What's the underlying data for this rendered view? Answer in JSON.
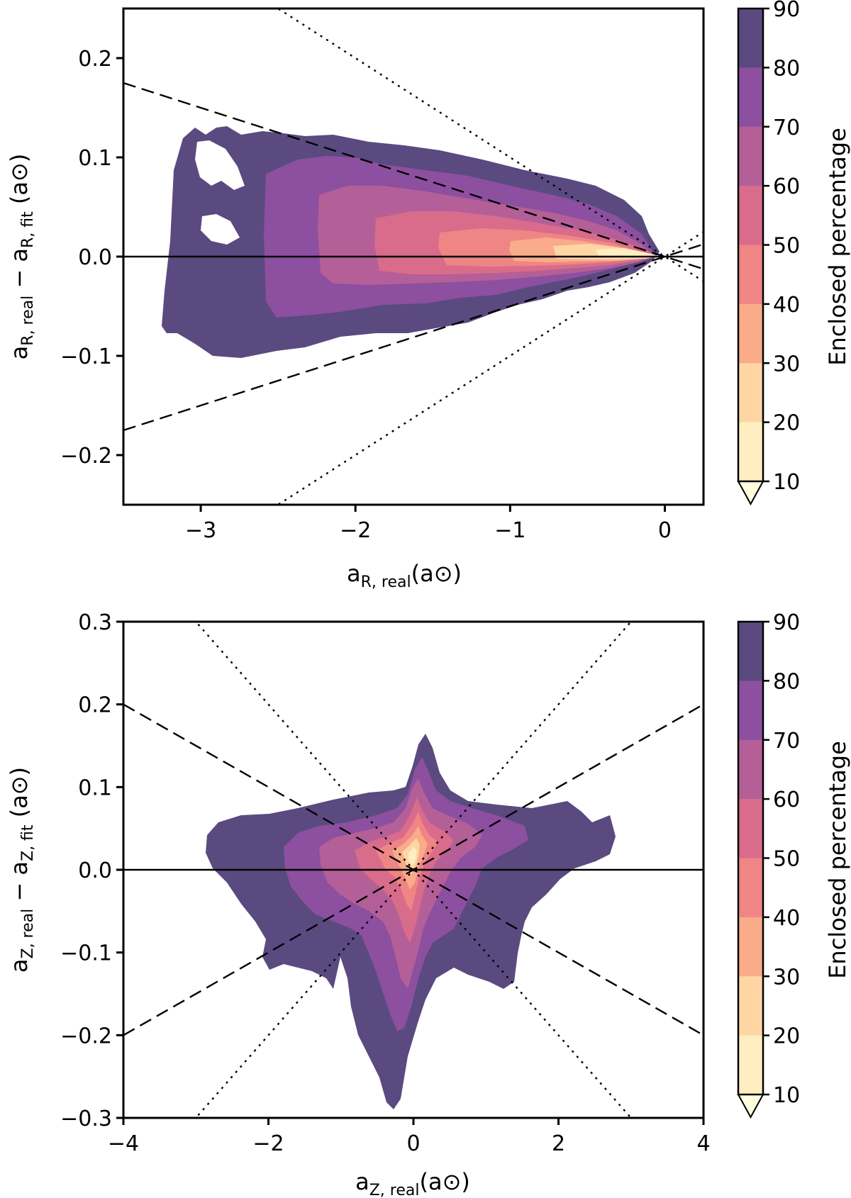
{
  "colors": {
    "levels": [
      "#feeec2",
      "#fed6a4",
      "#f9ab8a",
      "#ef8585",
      "#d96c8b",
      "#b45f98",
      "#8d4f9f",
      "#5a4a80",
      "#ffffff"
    ],
    "reference_line": "#000000"
  },
  "chart_data": [
    {
      "type": "contour",
      "xlabel": {
        "main": "a",
        "sub": "R, real",
        "unit": "(a⊙)"
      },
      "ylabel": {
        "main1": "a",
        "sub1": "R, real",
        "minus": " − ",
        "main2": "a",
        "sub2": "R, fit",
        "unit": " (a⊙)"
      },
      "xlim": [
        -3.5,
        0.25
      ],
      "ylim": [
        -0.25,
        0.25
      ],
      "xticks": [
        -3,
        -2,
        -1,
        0
      ],
      "xtick_labels": [
        "−3",
        "−2",
        "−1",
        "0"
      ],
      "yticks": [
        -0.2,
        -0.1,
        0.0,
        0.1,
        0.2
      ],
      "ytick_labels": [
        "−0.2",
        "−0.1",
        "0.0",
        "0.1",
        "0.2"
      ],
      "colorbar": {
        "label": "Enclosed percentage",
        "ticks": [
          "10",
          "20",
          "30",
          "40",
          "50",
          "60",
          "70",
          "80",
          "90"
        ]
      },
      "reference_lines": [
        {
          "style": "solid",
          "slope": 0
        },
        {
          "style": "dashed",
          "slope": -0.05
        },
        {
          "style": "dashed",
          "slope": 0.05
        },
        {
          "style": "dotted",
          "slope": -0.1
        },
        {
          "style": "dotted",
          "slope": 0.1
        }
      ],
      "grid": false
    },
    {
      "type": "contour",
      "xlabel": {
        "main": "a",
        "sub": "Z, real",
        "unit": "(a⊙)"
      },
      "ylabel": {
        "main1": "a",
        "sub1": "Z, real",
        "minus": " − ",
        "main2": "a",
        "sub2": "Z, fit",
        "unit": " (a⊙)"
      },
      "xlim": [
        -4,
        4
      ],
      "ylim": [
        -0.3,
        0.3
      ],
      "xticks": [
        -4,
        -2,
        0,
        2,
        4
      ],
      "xtick_labels": [
        "−4",
        "−2",
        "0",
        "2",
        "4"
      ],
      "yticks": [
        -0.3,
        -0.2,
        -0.1,
        0.0,
        0.1,
        0.2,
        0.3
      ],
      "ytick_labels": [
        "−0.3",
        "−0.2",
        "−0.1",
        "0.0",
        "0.1",
        "0.2",
        "0.3"
      ],
      "colorbar": {
        "label": "Enclosed percentage",
        "ticks": [
          "10",
          "20",
          "30",
          "40",
          "50",
          "60",
          "70",
          "80",
          "90"
        ]
      },
      "reference_lines": [
        {
          "style": "solid",
          "slope": 0
        },
        {
          "style": "dashed",
          "slope": -0.05
        },
        {
          "style": "dashed",
          "slope": 0.05
        },
        {
          "style": "dotted",
          "slope": -0.1
        },
        {
          "style": "dotted",
          "slope": 0.1
        }
      ],
      "grid": false
    }
  ]
}
